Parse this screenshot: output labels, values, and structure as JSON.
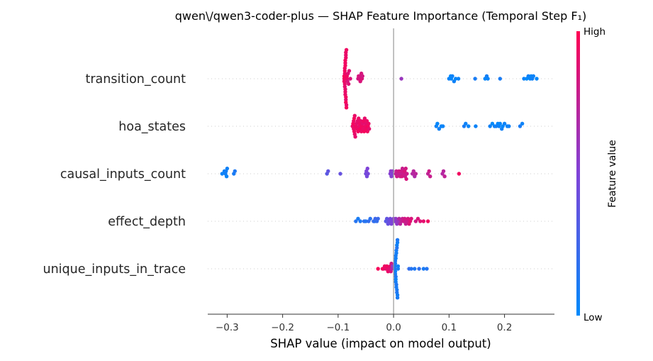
{
  "chart_data": {
    "type": "scatter",
    "subtype": "shap-beeswarm",
    "title": "qwen\\/qwen3-coder-plus — SHAP Feature Importance (Temporal Step F₁)",
    "xlabel": "SHAP value (impact on model output)",
    "xlim": [
      -0.335,
      0.29
    ],
    "xticks": [
      -0.3,
      -0.2,
      -0.1,
      0.0,
      0.1,
      0.2
    ],
    "xtick_labels": [
      "−0.3",
      "−0.2",
      "−0.1",
      "0.0",
      "0.1",
      "0.2"
    ],
    "colorbar": {
      "label": "Feature value",
      "high": "High",
      "low": "Low",
      "low_color": "#008afb",
      "mid_color": "#7f43d8",
      "high_color": "#ff0052"
    },
    "features": [
      {
        "name": "transition_count",
        "points": [
          [
            -0.087,
            0.9
          ],
          [
            -0.086,
            0.95
          ],
          [
            -0.088,
            0.92
          ],
          [
            -0.085,
            0.9
          ],
          [
            -0.089,
            0.95
          ],
          [
            -0.086,
            0.93
          ],
          [
            -0.087,
            0.96
          ],
          [
            -0.088,
            0.91
          ],
          [
            -0.085,
            0.94
          ],
          [
            -0.086,
            0.9
          ],
          [
            -0.087,
            0.92
          ],
          [
            -0.089,
            0.97
          ],
          [
            -0.084,
            0.93
          ],
          [
            -0.088,
            0.95
          ],
          [
            -0.086,
            0.91
          ],
          [
            -0.087,
            0.94
          ],
          [
            -0.085,
            0.96
          ],
          [
            -0.088,
            0.9
          ],
          [
            -0.089,
            0.93
          ],
          [
            -0.086,
            0.97
          ],
          [
            -0.087,
            0.91
          ],
          [
            -0.084,
            0.95
          ],
          [
            -0.088,
            0.94
          ],
          [
            -0.086,
            0.92
          ],
          [
            -0.087,
            0.96
          ],
          [
            -0.083,
            0.85
          ],
          [
            -0.082,
            0.88
          ],
          [
            -0.081,
            0.86
          ],
          [
            -0.08,
            0.87
          ],
          [
            -0.078,
            0.85
          ],
          [
            -0.064,
            0.82
          ],
          [
            -0.062,
            0.84
          ],
          [
            -0.063,
            0.86
          ],
          [
            -0.061,
            0.83
          ],
          [
            -0.06,
            0.85
          ],
          [
            -0.058,
            0.84
          ],
          [
            -0.056,
            0.82
          ],
          [
            -0.057,
            0.86
          ],
          [
            0.014,
            0.6
          ],
          [
            0.1,
            0.05
          ],
          [
            0.103,
            0.0
          ],
          [
            0.106,
            0.05
          ],
          [
            0.104,
            0.02
          ],
          [
            0.109,
            0.06
          ],
          [
            0.112,
            0.03
          ],
          [
            0.117,
            0.04
          ],
          [
            0.147,
            0.1
          ],
          [
            0.165,
            0.02
          ],
          [
            0.168,
            0.08
          ],
          [
            0.17,
            0.04
          ],
          [
            0.192,
            0.1
          ],
          [
            0.235,
            0.05
          ],
          [
            0.24,
            0.0
          ],
          [
            0.243,
            0.06
          ],
          [
            0.246,
            0.03
          ],
          [
            0.248,
            0.02
          ],
          [
            0.25,
            0.07
          ],
          [
            0.252,
            0.05
          ],
          [
            0.258,
            0.02
          ]
        ]
      },
      {
        "name": "hoa_states",
        "points": [
          [
            -0.073,
            0.9
          ],
          [
            -0.072,
            0.92
          ],
          [
            -0.074,
            0.95
          ],
          [
            -0.07,
            0.91
          ],
          [
            -0.071,
            0.94
          ],
          [
            -0.069,
            0.9
          ],
          [
            -0.073,
            0.96
          ],
          [
            -0.072,
            0.93
          ],
          [
            -0.068,
            0.95
          ],
          [
            -0.07,
            0.92
          ],
          [
            -0.067,
            0.9
          ],
          [
            -0.071,
            0.97
          ],
          [
            -0.066,
            0.93
          ],
          [
            -0.065,
            0.91
          ],
          [
            -0.064,
            0.95
          ],
          [
            -0.063,
            0.92
          ],
          [
            -0.062,
            0.9
          ],
          [
            -0.061,
            0.94
          ],
          [
            -0.06,
            0.96
          ],
          [
            -0.059,
            0.91
          ],
          [
            -0.058,
            0.93
          ],
          [
            -0.057,
            0.95
          ],
          [
            -0.056,
            0.9
          ],
          [
            -0.055,
            0.92
          ],
          [
            -0.054,
            0.94
          ],
          [
            -0.053,
            0.96
          ],
          [
            -0.052,
            0.91
          ],
          [
            -0.051,
            0.93
          ],
          [
            -0.05,
            0.9
          ],
          [
            -0.049,
            0.95
          ],
          [
            -0.048,
            0.92
          ],
          [
            -0.047,
            0.94
          ],
          [
            -0.046,
            0.96
          ],
          [
            -0.045,
            0.93
          ],
          [
            -0.044,
            0.9
          ],
          [
            0.077,
            0.05
          ],
          [
            0.079,
            0.02
          ],
          [
            0.082,
            0.06
          ],
          [
            0.086,
            0.03
          ],
          [
            0.089,
            0.04
          ],
          [
            0.127,
            0.1
          ],
          [
            0.13,
            0.05
          ],
          [
            0.135,
            0.03
          ],
          [
            0.148,
            0.05
          ],
          [
            0.174,
            0.06
          ],
          [
            0.178,
            0.0
          ],
          [
            0.182,
            0.04
          ],
          [
            0.185,
            0.08
          ],
          [
            0.188,
            0.02
          ],
          [
            0.19,
            0.05
          ],
          [
            0.192,
            0.03
          ],
          [
            0.195,
            0.07
          ],
          [
            0.197,
            0.02
          ],
          [
            0.2,
            0.05
          ],
          [
            0.205,
            0.04
          ],
          [
            0.208,
            0.06
          ],
          [
            0.228,
            0.1
          ],
          [
            0.232,
            0.05
          ]
        ]
      },
      {
        "name": "causal_inputs_count",
        "points": [
          [
            -0.309,
            0.05
          ],
          [
            -0.305,
            0.06
          ],
          [
            -0.303,
            0.07
          ],
          [
            -0.302,
            0.08
          ],
          [
            -0.301,
            0.04
          ],
          [
            -0.3,
            0.06
          ],
          [
            -0.288,
            0.1
          ],
          [
            -0.286,
            0.12
          ],
          [
            -0.12,
            0.35
          ],
          [
            -0.118,
            0.38
          ],
          [
            -0.096,
            0.4
          ],
          [
            -0.05,
            0.45
          ],
          [
            -0.049,
            0.48
          ],
          [
            -0.048,
            0.46
          ],
          [
            -0.047,
            0.5
          ],
          [
            -0.046,
            0.47
          ],
          [
            -0.006,
            0.52
          ],
          [
            -0.005,
            0.55
          ],
          [
            -0.004,
            0.53
          ],
          [
            -0.003,
            0.5
          ],
          [
            -0.002,
            0.54
          ],
          [
            0.004,
            0.75
          ],
          [
            0.005,
            0.78
          ],
          [
            0.006,
            0.8
          ],
          [
            0.008,
            0.76
          ],
          [
            0.01,
            0.82
          ],
          [
            0.012,
            0.79
          ],
          [
            0.013,
            0.77
          ],
          [
            0.014,
            0.81
          ],
          [
            0.015,
            0.83
          ],
          [
            0.016,
            0.78
          ],
          [
            0.018,
            0.8
          ],
          [
            0.02,
            0.85
          ],
          [
            0.021,
            0.79
          ],
          [
            0.022,
            0.82
          ],
          [
            0.023,
            0.84
          ],
          [
            0.024,
            0.8
          ],
          [
            0.034,
            0.7
          ],
          [
            0.036,
            0.72
          ],
          [
            0.038,
            0.68
          ],
          [
            0.04,
            0.73
          ],
          [
            0.062,
            0.75
          ],
          [
            0.064,
            0.8
          ],
          [
            0.066,
            0.78
          ],
          [
            0.088,
            0.7
          ],
          [
            0.09,
            0.72
          ],
          [
            0.092,
            0.75
          ],
          [
            0.118,
            0.95
          ]
        ]
      },
      {
        "name": "effect_depth",
        "points": [
          [
            -0.068,
            0.15
          ],
          [
            -0.064,
            0.1
          ],
          [
            -0.06,
            0.12
          ],
          [
            -0.053,
            0.18
          ],
          [
            -0.05,
            0.14
          ],
          [
            -0.045,
            0.2
          ],
          [
            -0.042,
            0.16
          ],
          [
            -0.036,
            0.22
          ],
          [
            -0.034,
            0.18
          ],
          [
            -0.033,
            0.25
          ],
          [
            -0.03,
            0.2
          ],
          [
            -0.028,
            0.23
          ],
          [
            -0.014,
            0.35
          ],
          [
            -0.012,
            0.38
          ],
          [
            -0.01,
            0.4
          ],
          [
            -0.008,
            0.42
          ],
          [
            -0.006,
            0.45
          ],
          [
            -0.004,
            0.48
          ],
          [
            -0.002,
            0.5
          ],
          [
            0.0,
            0.52
          ],
          [
            0.002,
            0.55
          ],
          [
            0.004,
            0.57
          ],
          [
            0.006,
            0.58
          ],
          [
            0.008,
            0.6
          ],
          [
            0.01,
            0.7
          ],
          [
            0.012,
            0.72
          ],
          [
            0.014,
            0.75
          ],
          [
            0.016,
            0.78
          ],
          [
            0.018,
            0.8
          ],
          [
            0.02,
            0.82
          ],
          [
            0.022,
            0.77
          ],
          [
            0.024,
            0.79
          ],
          [
            0.026,
            0.84
          ],
          [
            0.028,
            0.86
          ],
          [
            0.03,
            0.88
          ],
          [
            0.032,
            0.85
          ],
          [
            0.04,
            0.82
          ],
          [
            0.044,
            0.85
          ],
          [
            0.048,
            0.87
          ],
          [
            0.054,
            0.9
          ],
          [
            0.062,
            0.95
          ]
        ]
      },
      {
        "name": "unique_inputs_in_trace",
        "points": [
          [
            0.002,
            0.1
          ],
          [
            0.003,
            0.05
          ],
          [
            0.004,
            0.12
          ],
          [
            0.005,
            0.08
          ],
          [
            0.006,
            0.15
          ],
          [
            0.007,
            0.06
          ],
          [
            0.008,
            0.1
          ],
          [
            0.003,
            0.09
          ],
          [
            0.004,
            0.07
          ],
          [
            0.005,
            0.13
          ],
          [
            0.006,
            0.11
          ],
          [
            0.007,
            0.08
          ],
          [
            0.002,
            0.12
          ],
          [
            0.003,
            0.1
          ],
          [
            0.004,
            0.05
          ],
          [
            0.005,
            0.09
          ],
          [
            0.006,
            0.07
          ],
          [
            0.007,
            0.12
          ],
          [
            0.008,
            0.06
          ],
          [
            0.003,
            0.11
          ],
          [
            0.004,
            0.09
          ],
          [
            0.005,
            0.1
          ],
          [
            0.006,
            0.13
          ],
          [
            0.007,
            0.1
          ],
          [
            0.004,
            0.08
          ],
          [
            -0.002,
            0.6
          ],
          [
            -0.003,
            0.7
          ],
          [
            -0.004,
            0.8
          ],
          [
            -0.005,
            0.85
          ],
          [
            -0.006,
            0.9
          ],
          [
            -0.008,
            0.88
          ],
          [
            -0.01,
            0.92
          ],
          [
            -0.012,
            0.95
          ],
          [
            -0.014,
            0.9
          ],
          [
            -0.016,
            0.93
          ],
          [
            -0.018,
            0.96
          ],
          [
            -0.02,
            0.94
          ],
          [
            -0.028,
            0.97
          ],
          [
            0.028,
            0.2
          ],
          [
            0.032,
            0.15
          ],
          [
            0.038,
            0.12
          ],
          [
            0.046,
            0.18
          ],
          [
            0.054,
            0.1
          ],
          [
            0.06,
            0.15
          ]
        ]
      }
    ]
  }
}
